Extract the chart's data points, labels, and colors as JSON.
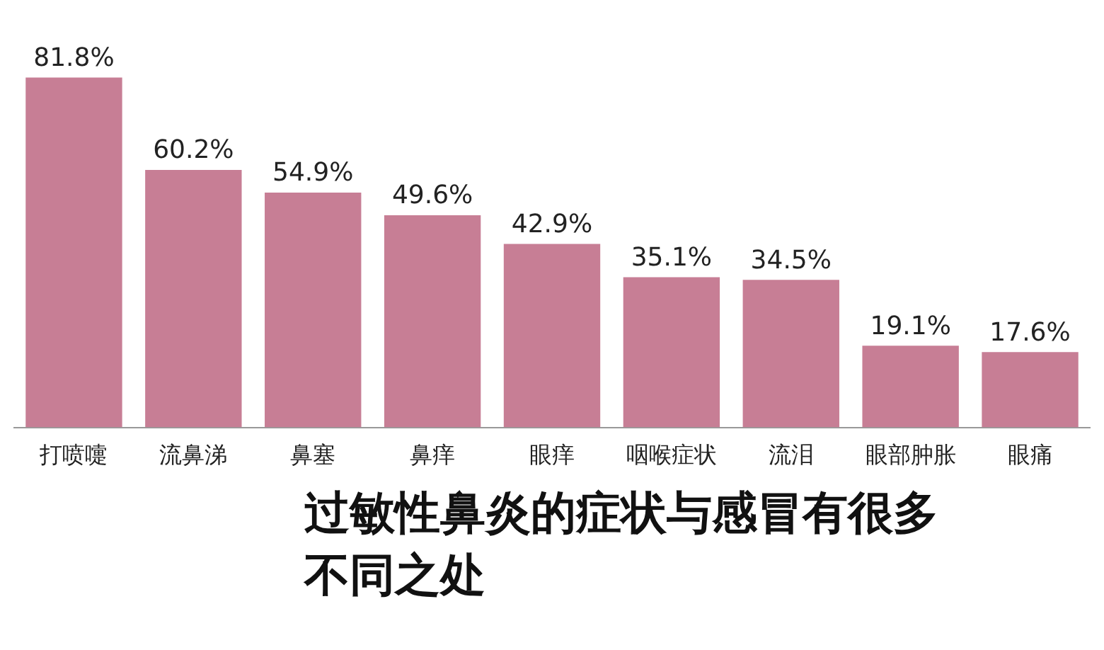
{
  "chart_data": {
    "type": "bar",
    "title": "过敏性鼻炎的症状与感冒有很多不同之处",
    "categories": [
      "打喷嚏",
      "流鼻涕",
      "鼻塞",
      "鼻痒",
      "眼痒",
      "咽喉症状",
      "流泪",
      "眼部肿胀",
      "眼痛"
    ],
    "values": [
      81.8,
      60.2,
      54.9,
      49.6,
      42.9,
      35.1,
      34.5,
      19.1,
      17.6
    ],
    "value_labels": [
      "81.8%",
      "60.2%",
      "54.9%",
      "49.6%",
      "42.9%",
      "35.1%",
      "34.5%",
      "19.1%",
      "17.6%"
    ],
    "color": "#c77e95",
    "grid": false,
    "legend": false
  }
}
